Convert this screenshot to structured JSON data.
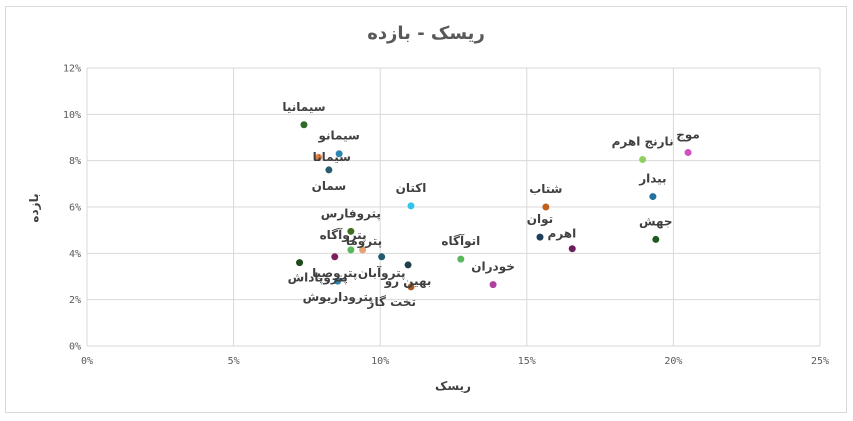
{
  "chart_data": {
    "type": "scatter",
    "title": "ریسک - بازده",
    "xlabel": "ریسک",
    "ylabel": "بازده",
    "xlim": [
      0,
      25
    ],
    "ylim": [
      0,
      12
    ],
    "x_tick_step": 5,
    "y_tick_step": 2,
    "x_tick_labels": [
      "0%",
      "5%",
      "10%",
      "15%",
      "20%",
      "25%"
    ],
    "y_tick_labels": [
      "0%",
      "2%",
      "4%",
      "6%",
      "8%",
      "10%",
      "12%"
    ],
    "grid": true,
    "legend": "none",
    "points": [
      {
        "label": "سیمانیا",
        "x": 7.4,
        "y": 9.55,
        "color": "#2e6b26",
        "label_pos": "above"
      },
      {
        "label": "سیمانو",
        "x": 8.6,
        "y": 8.3,
        "color": "#2e86b5",
        "label_pos": "above"
      },
      {
        "label": "سیمانا",
        "x": 7.9,
        "y": 8.15,
        "color": "#e8803f",
        "label_pos": "left"
      },
      {
        "label": "سمان",
        "x": 8.25,
        "y": 7.6,
        "color": "#265c6b",
        "label_pos": "below"
      },
      {
        "label": "اکتان",
        "x": 11.05,
        "y": 6.05,
        "color": "#33c3ed",
        "label_pos": "above"
      },
      {
        "label": "پتروفارس",
        "x": 9.0,
        "y": 4.95,
        "color": "#3e6e1e",
        "label_pos": "above"
      },
      {
        "label": "پتروآگاه",
        "x": 9.4,
        "y": 4.15,
        "color": "#e8a070",
        "label_pos": "aboveright"
      },
      {
        "label": "پتروما",
        "x": 9.0,
        "y": 4.15,
        "color": "#5cb85c",
        "label_pos": "aboveleft"
      },
      {
        "label": "پتروصبا",
        "x": 8.45,
        "y": 3.85,
        "color": "#7b1f5f",
        "label_pos": "below"
      },
      {
        "label": "پتروآبان",
        "x": 10.05,
        "y": 3.85,
        "color": "#205a70",
        "label_pos": "below"
      },
      {
        "label": "پتروپاداش",
        "x": 7.25,
        "y": 3.6,
        "color": "#1e4a1e",
        "label_pos": "belowleft"
      },
      {
        "label": "پتروداریوش",
        "x": 8.55,
        "y": 2.8,
        "color": "#2e86b5",
        "label_pos": "below"
      },
      {
        "label": "بهین رو",
        "x": 10.95,
        "y": 3.5,
        "color": "#1f3f4a",
        "label_pos": "below"
      },
      {
        "label": "تخت گاز",
        "x": 11.05,
        "y": 2.55,
        "color": "#b0561a",
        "label_pos": "belowright"
      },
      {
        "label": "اتوآگاه",
        "x": 12.75,
        "y": 3.75,
        "color": "#5cb85c",
        "label_pos": "above"
      },
      {
        "label": "خودران",
        "x": 13.85,
        "y": 2.65,
        "color": "#b040a0",
        "label_pos": "above"
      },
      {
        "label": "شتاب",
        "x": 15.65,
        "y": 6.0,
        "color": "#c0601a",
        "label_pos": "above"
      },
      {
        "label": "توان",
        "x": 15.45,
        "y": 4.7,
        "color": "#1f3f5a",
        "label_pos": "above"
      },
      {
        "label": "اهرم",
        "x": 16.55,
        "y": 4.2,
        "color": "#6a1f5a",
        "label_pos": "aboveright"
      },
      {
        "label": "نارنج اهرم",
        "x": 18.95,
        "y": 8.05,
        "color": "#8fd060",
        "label_pos": "above"
      },
      {
        "label": "موج",
        "x": 20.5,
        "y": 8.35,
        "color": "#d050c0",
        "label_pos": "above"
      },
      {
        "label": "بیدار",
        "x": 19.3,
        "y": 6.45,
        "color": "#2070a0",
        "label_pos": "above"
      },
      {
        "label": "جهش",
        "x": 19.4,
        "y": 4.6,
        "color": "#1e5a1e",
        "label_pos": "above"
      }
    ]
  }
}
